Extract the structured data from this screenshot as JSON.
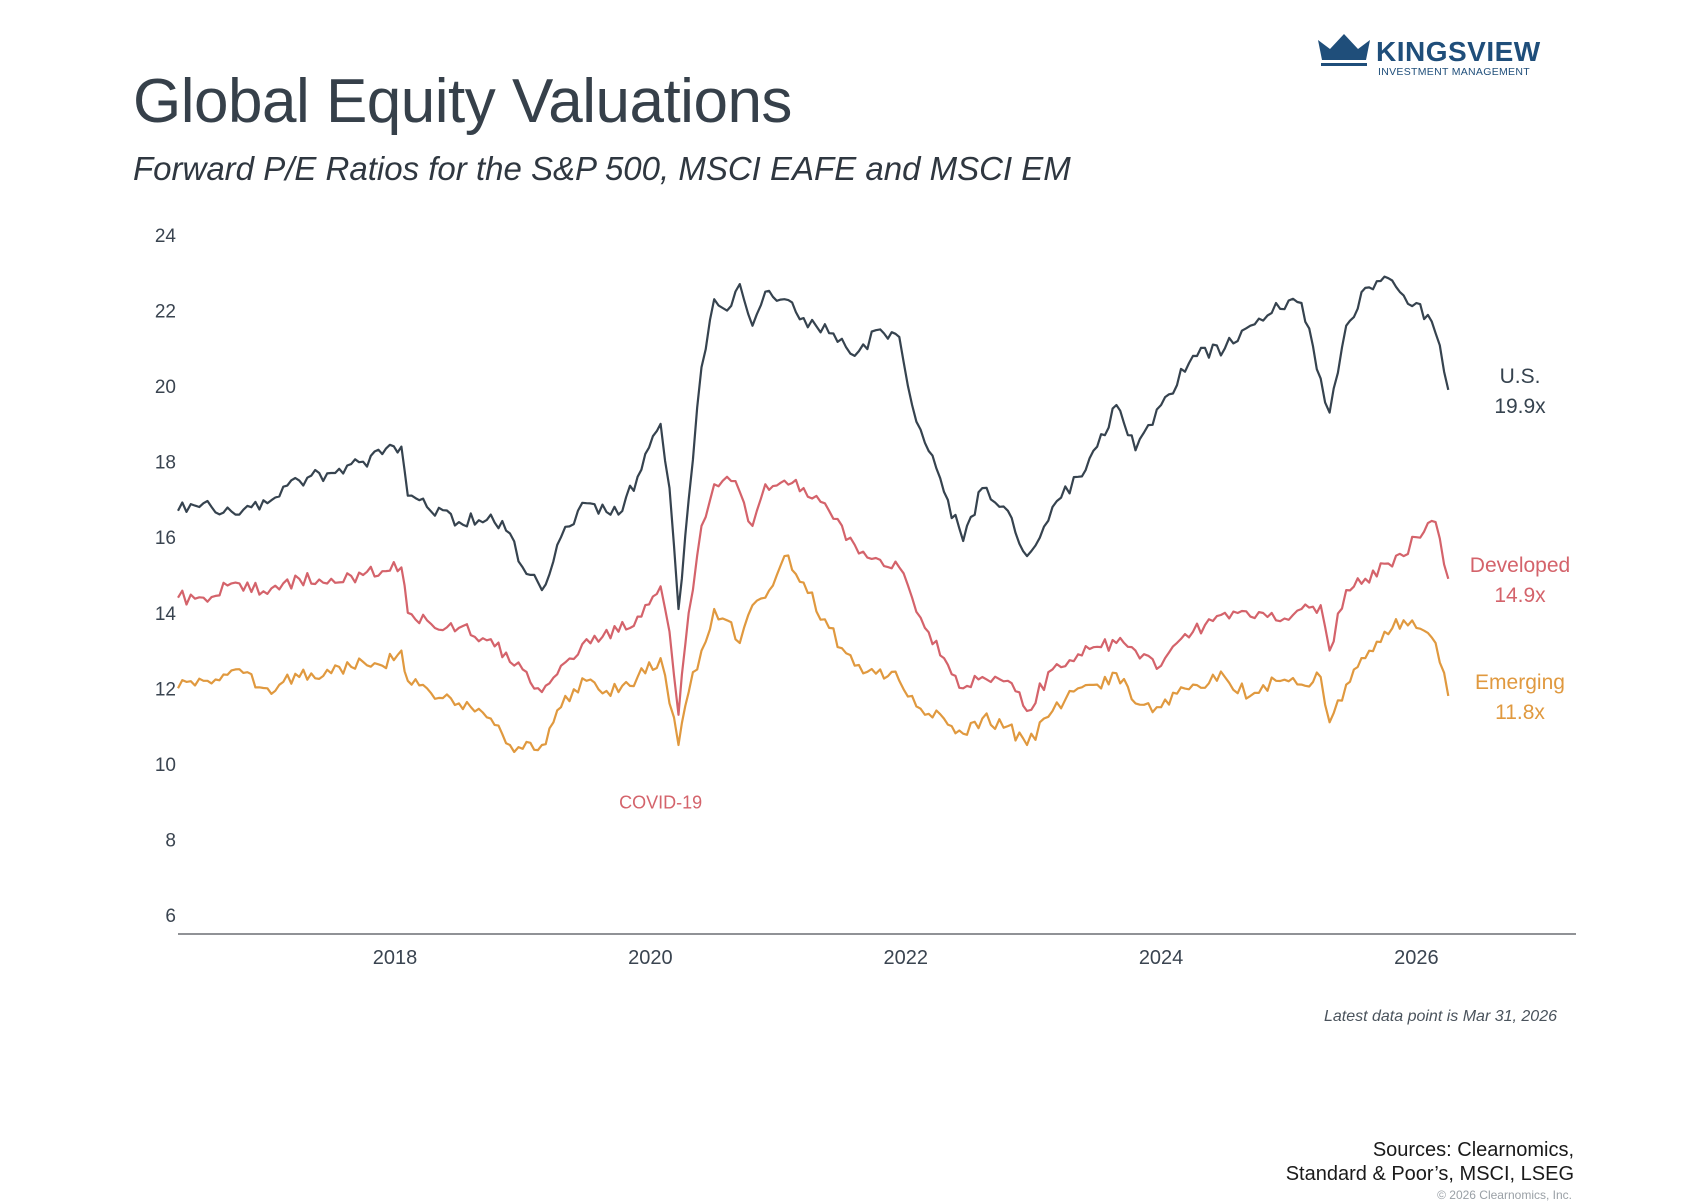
{
  "header": {
    "title": "Global Equity Valuations",
    "subtitle": "Forward P/E Ratios for the S&P 500, MSCI EAFE and MSCI EM"
  },
  "logo": {
    "name": "KINGSVIEW",
    "tagline": "INVESTMENT MANAGEMENT",
    "icon": "crown-icon",
    "color": "#1f4e7a"
  },
  "footer": {
    "note": "Latest data point is Mar 31, 2026",
    "sources_line1": "Sources: Clearnomics,",
    "sources_line2": "Standard & Poor’s, MSCI, LSEG",
    "copyright": "© 2026 Clearnomics, Inc."
  },
  "chart_data": {
    "type": "line",
    "title": "Global Equity Valuations",
    "subtitle": "Forward P/E Ratios for the S&P 500, MSCI EAFE and MSCI EM",
    "xlabel": "",
    "ylabel": "",
    "xlim": [
      2016.3,
      2027.25
    ],
    "ylim": [
      6,
      24
    ],
    "yticks": [
      6,
      8,
      10,
      12,
      14,
      16,
      18,
      20,
      22,
      24
    ],
    "xticks": [
      2018,
      2020,
      2022,
      2024,
      2026
    ],
    "grid": false,
    "annotations": [
      {
        "text": "COVID-19",
        "x": 2020.08,
        "y": 9.0,
        "color": "#d4636b"
      }
    ],
    "series": [
      {
        "name": "U.S.",
        "label": "U.S.",
        "value_label": "19.9x",
        "color": "#36434f",
        "x": [
          2016.3,
          2016.5,
          2016.75,
          2017.0,
          2017.25,
          2017.5,
          2017.75,
          2017.9,
          2018.05,
          2018.1,
          2018.25,
          2018.5,
          2018.75,
          2018.9,
          2019.0,
          2019.15,
          2019.3,
          2019.5,
          2019.75,
          2019.9,
          2020.08,
          2020.15,
          2020.22,
          2020.3,
          2020.4,
          2020.5,
          2020.6,
          2020.7,
          2020.8,
          2020.9,
          2021.05,
          2021.2,
          2021.4,
          2021.6,
          2021.8,
          2021.95,
          2022.05,
          2022.15,
          2022.3,
          2022.45,
          2022.6,
          2022.8,
          2022.95,
          2023.15,
          2023.35,
          2023.5,
          2023.65,
          2023.8,
          2024.0,
          2024.25,
          2024.5,
          2024.7,
          2024.9,
          2025.1,
          2025.25,
          2025.32,
          2025.45,
          2025.6,
          2025.75,
          2025.9,
          2026.0,
          2026.15,
          2026.25
        ],
        "values": [
          16.7,
          16.9,
          16.6,
          16.9,
          17.5,
          17.7,
          18.0,
          18.2,
          18.4,
          17.1,
          16.8,
          16.4,
          16.6,
          16.1,
          15.2,
          14.6,
          16.0,
          16.9,
          16.6,
          17.6,
          19.0,
          17.3,
          14.1,
          17.0,
          20.5,
          22.3,
          22.0,
          22.7,
          21.6,
          22.5,
          22.3,
          21.8,
          21.4,
          20.8,
          21.5,
          21.3,
          19.5,
          18.5,
          17.2,
          15.9,
          17.3,
          16.7,
          15.5,
          16.8,
          17.6,
          18.4,
          19.5,
          18.3,
          19.5,
          20.8,
          21.0,
          21.6,
          22.2,
          22.2,
          20.2,
          19.3,
          21.6,
          22.6,
          22.9,
          22.4,
          22.2,
          21.4,
          19.9
        ]
      },
      {
        "name": "Developed",
        "label": "Developed",
        "value_label": "14.9x",
        "color": "#d4636b",
        "x": [
          2016.3,
          2016.5,
          2016.75,
          2017.0,
          2017.25,
          2017.5,
          2017.75,
          2017.9,
          2018.05,
          2018.1,
          2018.25,
          2018.5,
          2018.75,
          2018.9,
          2019.0,
          2019.15,
          2019.3,
          2019.5,
          2019.75,
          2019.9,
          2020.08,
          2020.15,
          2020.22,
          2020.3,
          2020.4,
          2020.5,
          2020.6,
          2020.7,
          2020.8,
          2020.9,
          2021.05,
          2021.2,
          2021.4,
          2021.6,
          2021.8,
          2021.95,
          2022.05,
          2022.15,
          2022.3,
          2022.45,
          2022.6,
          2022.8,
          2022.95,
          2023.15,
          2023.35,
          2023.5,
          2023.65,
          2023.8,
          2024.0,
          2024.25,
          2024.5,
          2024.7,
          2024.9,
          2025.1,
          2025.25,
          2025.32,
          2025.45,
          2025.6,
          2025.75,
          2025.9,
          2026.0,
          2026.15,
          2026.25
        ],
        "values": [
          14.4,
          14.4,
          14.8,
          14.5,
          14.9,
          14.9,
          15.0,
          15.1,
          15.2,
          14.0,
          13.8,
          13.6,
          13.3,
          12.7,
          12.5,
          11.9,
          12.6,
          13.3,
          13.5,
          13.9,
          14.7,
          13.5,
          11.3,
          14.0,
          16.3,
          17.4,
          17.6,
          17.2,
          16.3,
          17.4,
          17.5,
          17.3,
          16.7,
          15.8,
          15.4,
          15.2,
          14.4,
          13.6,
          12.8,
          12.0,
          12.3,
          12.2,
          11.4,
          12.5,
          12.9,
          13.1,
          13.2,
          13.0,
          12.6,
          13.5,
          14.0,
          13.9,
          13.8,
          14.1,
          14.2,
          13.0,
          14.6,
          14.9,
          15.3,
          15.5,
          16.0,
          16.4,
          14.9
        ]
      },
      {
        "name": "Emerging",
        "label": "Emerging",
        "value_label": "11.8x",
        "color": "#e0993f",
        "x": [
          2016.3,
          2016.5,
          2016.75,
          2017.0,
          2017.25,
          2017.5,
          2017.75,
          2017.9,
          2018.05,
          2018.1,
          2018.25,
          2018.5,
          2018.75,
          2018.9,
          2019.0,
          2019.15,
          2019.3,
          2019.5,
          2019.75,
          2019.9,
          2020.08,
          2020.15,
          2020.22,
          2020.3,
          2020.4,
          2020.5,
          2020.6,
          2020.7,
          2020.8,
          2020.9,
          2021.05,
          2021.2,
          2021.4,
          2021.6,
          2021.8,
          2021.95,
          2022.05,
          2022.15,
          2022.3,
          2022.45,
          2022.6,
          2022.8,
          2022.95,
          2023.15,
          2023.35,
          2023.5,
          2023.65,
          2023.8,
          2024.0,
          2024.25,
          2024.5,
          2024.7,
          2024.9,
          2025.1,
          2025.25,
          2025.32,
          2025.45,
          2025.6,
          2025.75,
          2025.9,
          2026.0,
          2026.15,
          2026.25
        ],
        "values": [
          12.0,
          12.2,
          12.5,
          12.0,
          12.3,
          12.4,
          12.7,
          12.6,
          13.0,
          12.2,
          12.0,
          11.6,
          11.2,
          10.5,
          10.4,
          10.5,
          11.5,
          12.2,
          11.9,
          12.3,
          12.8,
          11.6,
          10.5,
          11.9,
          13.0,
          14.1,
          13.8,
          13.2,
          14.2,
          14.4,
          15.5,
          14.8,
          13.6,
          12.6,
          12.5,
          12.2,
          11.8,
          11.3,
          11.2,
          10.8,
          11.2,
          11.0,
          10.5,
          11.4,
          12.0,
          12.1,
          12.4,
          11.6,
          11.5,
          12.1,
          12.3,
          11.8,
          12.2,
          12.1,
          12.3,
          11.1,
          12.1,
          12.8,
          13.5,
          13.8,
          13.6,
          13.2,
          11.8
        ]
      }
    ]
  }
}
